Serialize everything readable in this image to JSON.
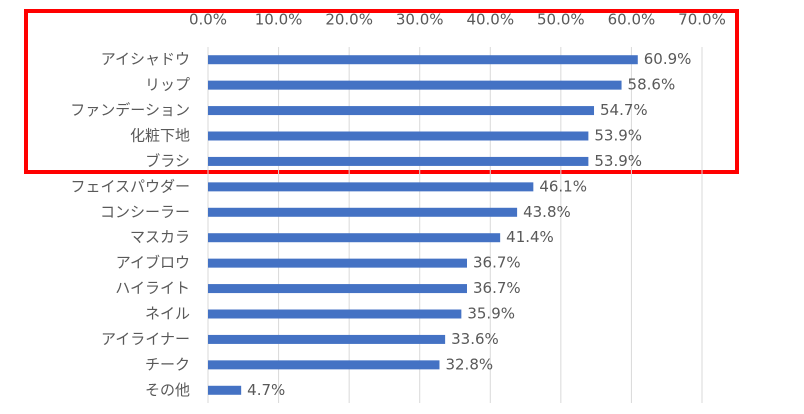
{
  "chart_data": {
    "type": "bar",
    "orientation": "horizontal",
    "categories": [
      "アイシャドウ",
      "リップ",
      "ファンデーション",
      "化粧下地",
      "ブラシ",
      "フェイスパウダー",
      "コンシーラー",
      "マスカラ",
      "アイブロウ",
      "ハイライト",
      "ネイル",
      "アイライナー",
      "チーク",
      "その他"
    ],
    "values": [
      60.9,
      58.6,
      54.7,
      53.9,
      53.9,
      46.1,
      43.8,
      41.4,
      36.7,
      36.7,
      35.9,
      33.6,
      32.8,
      4.7
    ],
    "value_labels": [
      "60.9%",
      "58.6%",
      "54.7%",
      "53.9%",
      "53.9%",
      "46.1%",
      "43.8%",
      "41.4%",
      "36.7%",
      "36.7%",
      "35.9%",
      "33.6%",
      "32.8%",
      "4.7%"
    ],
    "color": "#4472c4",
    "xlim": [
      0,
      70
    ],
    "xticks": [
      {
        "value": 0,
        "label": "0.0%"
      },
      {
        "value": 10,
        "label": "10.0%"
      },
      {
        "value": 20,
        "label": "20.0%"
      },
      {
        "value": 30,
        "label": "30.0%"
      },
      {
        "value": 40,
        "label": "40.0%"
      },
      {
        "value": 50,
        "label": "50.0%"
      },
      {
        "value": 60,
        "label": "60.0%"
      },
      {
        "value": 70,
        "label": "70.0%"
      }
    ],
    "grid": true
  }
}
